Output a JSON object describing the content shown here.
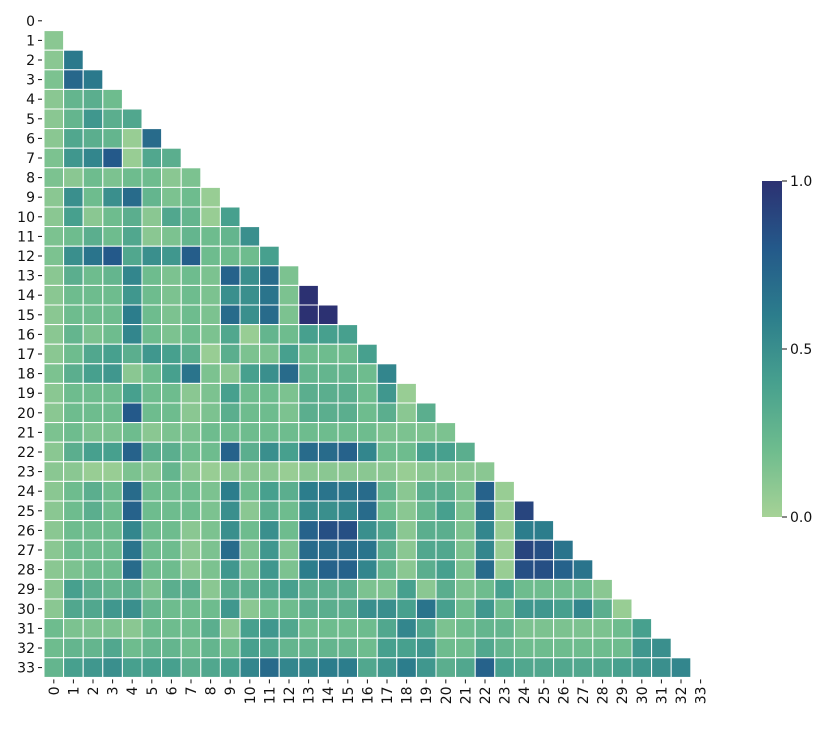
{
  "chart_data": {
    "type": "heatmap",
    "title": "",
    "xlabel": "",
    "ylabel": "",
    "mask": "upper-triangle-and-diagonal",
    "x_labels": [
      "0",
      "1",
      "2",
      "3",
      "4",
      "5",
      "6",
      "7",
      "8",
      "9",
      "10",
      "11",
      "12",
      "13",
      "14",
      "15",
      "16",
      "17",
      "18",
      "19",
      "20",
      "21",
      "22",
      "23",
      "24",
      "25",
      "26",
      "27",
      "28",
      "29",
      "30",
      "31",
      "32",
      "33"
    ],
    "y_labels": [
      "0",
      "1",
      "2",
      "3",
      "4",
      "5",
      "6",
      "7",
      "8",
      "9",
      "10",
      "11",
      "12",
      "13",
      "14",
      "15",
      "16",
      "17",
      "18",
      "19",
      "20",
      "21",
      "22",
      "23",
      "24",
      "25",
      "26",
      "27",
      "28",
      "29",
      "30",
      "31",
      "32",
      "33"
    ],
    "values": [
      [],
      [
        0.1
      ],
      [
        0.1,
        0.62
      ],
      [
        0.15,
        0.72,
        0.62
      ],
      [
        0.1,
        0.25,
        0.3,
        0.2
      ],
      [
        0.1,
        0.25,
        0.45,
        0.3,
        0.35
      ],
      [
        0.1,
        0.35,
        0.3,
        0.25,
        0.05,
        0.7
      ],
      [
        0.15,
        0.45,
        0.55,
        0.8,
        0.05,
        0.35,
        0.3
      ],
      [
        0.15,
        0.1,
        0.2,
        0.15,
        0.2,
        0.2,
        0.1,
        0.15
      ],
      [
        0.1,
        0.5,
        0.2,
        0.5,
        0.7,
        0.25,
        0.15,
        0.2,
        0.05
      ],
      [
        0.1,
        0.4,
        0.1,
        0.2,
        0.3,
        0.1,
        0.35,
        0.25,
        0.05,
        0.4
      ],
      [
        0.15,
        0.2,
        0.3,
        0.2,
        0.35,
        0.1,
        0.15,
        0.25,
        0.2,
        0.25,
        0.5
      ],
      [
        0.15,
        0.5,
        0.65,
        0.8,
        0.35,
        0.5,
        0.45,
        0.78,
        0.2,
        0.2,
        0.2,
        0.4
      ],
      [
        0.1,
        0.3,
        0.2,
        0.25,
        0.55,
        0.2,
        0.15,
        0.2,
        0.15,
        0.75,
        0.5,
        0.7,
        0.15
      ],
      [
        0.1,
        0.2,
        0.2,
        0.2,
        0.45,
        0.2,
        0.15,
        0.2,
        0.15,
        0.5,
        0.5,
        0.65,
        0.15,
        1.0
      ],
      [
        0.1,
        0.2,
        0.2,
        0.2,
        0.6,
        0.2,
        0.15,
        0.2,
        0.15,
        0.7,
        0.5,
        0.7,
        0.15,
        1.0,
        1.0
      ],
      [
        0.1,
        0.25,
        0.15,
        0.2,
        0.55,
        0.2,
        0.15,
        0.2,
        0.15,
        0.35,
        0.05,
        0.25,
        0.2,
        0.4,
        0.4,
        0.4
      ],
      [
        0.1,
        0.2,
        0.35,
        0.4,
        0.3,
        0.45,
        0.4,
        0.3,
        0.05,
        0.3,
        0.15,
        0.15,
        0.4,
        0.2,
        0.2,
        0.2,
        0.4
      ],
      [
        0.15,
        0.3,
        0.4,
        0.45,
        0.1,
        0.2,
        0.4,
        0.65,
        0.15,
        0.1,
        0.4,
        0.5,
        0.7,
        0.25,
        0.25,
        0.25,
        0.2,
        0.55
      ],
      [
        0.1,
        0.2,
        0.2,
        0.2,
        0.4,
        0.2,
        0.2,
        0.1,
        0.15,
        0.4,
        0.2,
        0.2,
        0.15,
        0.3,
        0.3,
        0.3,
        0.2,
        0.45,
        0.05
      ],
      [
        0.1,
        0.2,
        0.2,
        0.2,
        0.8,
        0.2,
        0.2,
        0.1,
        0.15,
        0.3,
        0.2,
        0.2,
        0.15,
        0.3,
        0.3,
        0.3,
        0.2,
        0.3,
        0.1,
        0.3
      ],
      [
        0.15,
        0.2,
        0.15,
        0.15,
        0.2,
        0.1,
        0.15,
        0.15,
        0.2,
        0.2,
        0.2,
        0.2,
        0.2,
        0.2,
        0.2,
        0.2,
        0.2,
        0.15,
        0.15,
        0.15,
        0.15
      ],
      [
        0.1,
        0.3,
        0.4,
        0.4,
        0.75,
        0.3,
        0.3,
        0.2,
        0.2,
        0.75,
        0.3,
        0.5,
        0.4,
        0.7,
        0.7,
        0.75,
        0.55,
        0.2,
        0.2,
        0.4,
        0.4,
        0.3
      ],
      [
        0.1,
        0.1,
        0.05,
        0.05,
        0.15,
        0.1,
        0.25,
        0.1,
        0.05,
        0.1,
        0.1,
        0.1,
        0.05,
        0.1,
        0.1,
        0.1,
        0.1,
        0.1,
        0.05,
        0.1,
        0.1,
        0.1,
        0.1
      ],
      [
        0.1,
        0.2,
        0.3,
        0.2,
        0.7,
        0.2,
        0.2,
        0.2,
        0.15,
        0.6,
        0.2,
        0.4,
        0.3,
        0.6,
        0.65,
        0.65,
        0.7,
        0.25,
        0.1,
        0.3,
        0.3,
        0.15,
        0.75,
        0.05
      ],
      [
        0.1,
        0.2,
        0.3,
        0.2,
        0.75,
        0.2,
        0.2,
        0.2,
        0.15,
        0.5,
        0.1,
        0.3,
        0.2,
        0.5,
        0.5,
        0.55,
        0.7,
        0.2,
        0.1,
        0.25,
        0.4,
        0.15,
        0.7,
        0.05,
        0.9
      ],
      [
        0.1,
        0.2,
        0.2,
        0.2,
        0.55,
        0.2,
        0.2,
        0.1,
        0.15,
        0.5,
        0.2,
        0.5,
        0.2,
        0.75,
        0.85,
        0.85,
        0.5,
        0.35,
        0.1,
        0.3,
        0.3,
        0.15,
        0.55,
        0.05,
        0.6,
        0.6
      ],
      [
        0.1,
        0.2,
        0.2,
        0.2,
        0.65,
        0.2,
        0.2,
        0.1,
        0.15,
        0.7,
        0.15,
        0.45,
        0.15,
        0.7,
        0.7,
        0.7,
        0.65,
        0.3,
        0.1,
        0.35,
        0.35,
        0.15,
        0.55,
        0.05,
        0.9,
        0.85,
        0.65
      ],
      [
        0.1,
        0.15,
        0.2,
        0.2,
        0.7,
        0.2,
        0.2,
        0.1,
        0.15,
        0.45,
        0.15,
        0.45,
        0.15,
        0.6,
        0.75,
        0.75,
        0.55,
        0.25,
        0.1,
        0.3,
        0.4,
        0.15,
        0.7,
        0.05,
        0.85,
        0.85,
        0.75,
        0.65
      ],
      [
        0.1,
        0.4,
        0.3,
        0.25,
        0.3,
        0.15,
        0.3,
        0.3,
        0.1,
        0.3,
        0.3,
        0.35,
        0.4,
        0.3,
        0.3,
        0.3,
        0.15,
        0.15,
        0.4,
        0.1,
        0.3,
        0.15,
        0.2,
        0.4,
        0.2,
        0.2,
        0.2,
        0.2,
        0.1
      ],
      [
        0.1,
        0.35,
        0.35,
        0.45,
        0.5,
        0.25,
        0.2,
        0.2,
        0.2,
        0.45,
        0.1,
        0.2,
        0.2,
        0.3,
        0.3,
        0.3,
        0.5,
        0.5,
        0.4,
        0.65,
        0.4,
        0.2,
        0.45,
        0.2,
        0.45,
        0.45,
        0.4,
        0.55,
        0.3,
        0.05
      ],
      [
        0.2,
        0.15,
        0.15,
        0.15,
        0.1,
        0.2,
        0.2,
        0.2,
        0.3,
        0.1,
        0.4,
        0.45,
        0.35,
        0.2,
        0.2,
        0.2,
        0.2,
        0.35,
        0.55,
        0.35,
        0.15,
        0.2,
        0.25,
        0.25,
        0.15,
        0.15,
        0.15,
        0.15,
        0.15,
        0.2,
        0.4
      ],
      [
        0.2,
        0.25,
        0.25,
        0.35,
        0.2,
        0.25,
        0.25,
        0.2,
        0.25,
        0.2,
        0.4,
        0.35,
        0.25,
        0.25,
        0.25,
        0.25,
        0.2,
        0.4,
        0.4,
        0.45,
        0.2,
        0.2,
        0.35,
        0.25,
        0.2,
        0.2,
        0.2,
        0.2,
        0.2,
        0.2,
        0.45,
        0.5
      ],
      [
        0.25,
        0.4,
        0.45,
        0.5,
        0.4,
        0.4,
        0.4,
        0.3,
        0.35,
        0.4,
        0.55,
        0.7,
        0.55,
        0.55,
        0.6,
        0.6,
        0.35,
        0.45,
        0.6,
        0.45,
        0.3,
        0.35,
        0.75,
        0.4,
        0.35,
        0.35,
        0.35,
        0.35,
        0.35,
        0.4,
        0.45,
        0.5,
        0.55
      ]
    ],
    "vmin": 0.0,
    "vmax": 1.0,
    "colormap": "crest",
    "colors": [
      "#a6d296",
      "#6ebc8e",
      "#47a08e",
      "#2c7d8c",
      "#24598a",
      "#2c3172"
    ],
    "colorbar": {
      "ticks": [
        "0.0",
        "0.5",
        "1.0"
      ],
      "tick_values": [
        0.0,
        0.5,
        1.0
      ]
    },
    "grid_line_color": "#ffffff"
  }
}
